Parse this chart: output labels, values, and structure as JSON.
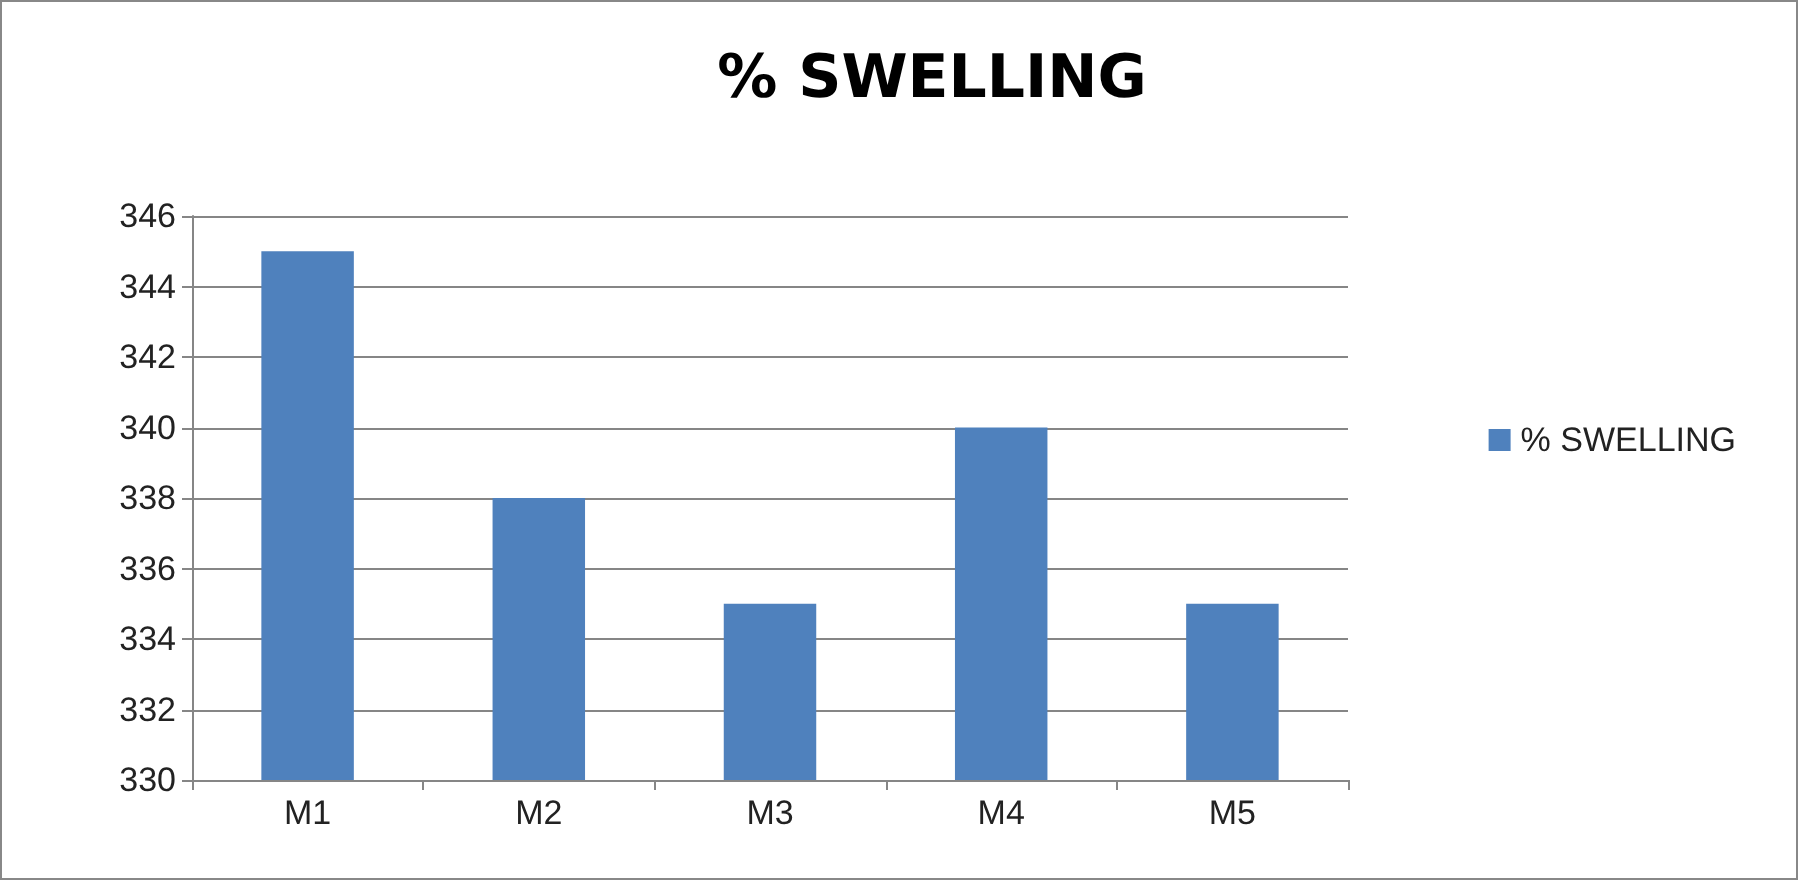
{
  "chart_data": {
    "type": "bar",
    "title": "% SWELLING",
    "categories": [
      "M1",
      "M2",
      "M3",
      "M4",
      "M5"
    ],
    "series": [
      {
        "name": "% SWELLING",
        "color": "#4f81bd",
        "values": [
          345,
          338,
          335,
          340,
          335
        ]
      }
    ],
    "ylim": [
      330,
      346
    ],
    "yticks": [
      330,
      332,
      334,
      336,
      338,
      340,
      342,
      344,
      346
    ],
    "grid": "y",
    "legend": "right"
  }
}
